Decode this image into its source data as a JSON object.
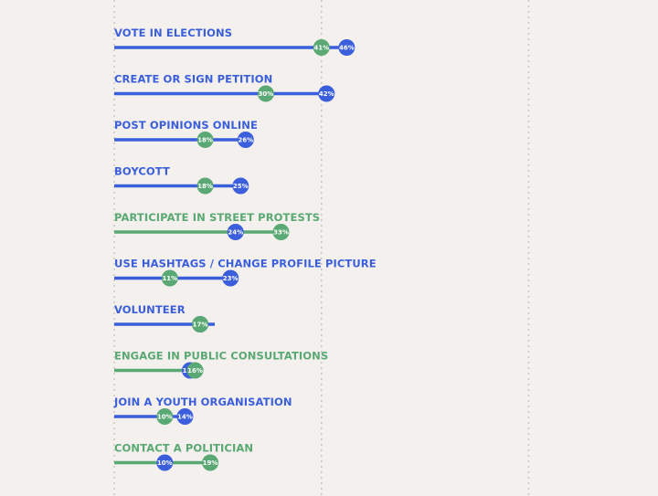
{
  "colors": {
    "background": "#f3f0ed",
    "blue": "#3b5fdc",
    "green": "#5aa873",
    "grid": "#c9c6c2",
    "dot_text": "#ffffff"
  },
  "chart_data": {
    "type": "dumbbell",
    "xlim": [
      0,
      100
    ],
    "grid": "vertical dotted lines at 0, 50, 100",
    "series": [
      {
        "key": "blue",
        "color": "#3b5fdc"
      },
      {
        "key": "green",
        "color": "#5aa873"
      }
    ],
    "rows": [
      {
        "label": "VOTE IN ELECTIONS",
        "label_color": "blue",
        "blue": 46,
        "green": 41,
        "blue_text": "46%",
        "green_text": "41%"
      },
      {
        "label": "CREATE OR SIGN PETITION",
        "label_color": "blue",
        "blue": 42,
        "green": 30,
        "blue_text": "42%",
        "green_text": "30%"
      },
      {
        "label": "POST OPINIONS ONLINE",
        "label_color": "blue",
        "blue": 26,
        "green": 18,
        "blue_text": "26%",
        "green_text": "18%"
      },
      {
        "label": "BOYCOTT",
        "label_color": "blue",
        "blue": 25,
        "green": 18,
        "blue_text": "25%",
        "green_text": "18%"
      },
      {
        "label": "PARTICIPATE IN STREET PROTESTS",
        "label_color": "green",
        "blue": 24,
        "green": 33,
        "blue_text": "24%",
        "green_text": "33%"
      },
      {
        "label": "USE HASHTAGS / CHANGE PROFILE PICTURE",
        "label_color": "blue",
        "blue": 23,
        "green": 11,
        "blue_text": "23%",
        "green_text": "11%"
      },
      {
        "label": "VOLUNTEER",
        "label_color": "blue",
        "blue": 17,
        "green": 17,
        "blue_text": "",
        "green_text": "17%"
      },
      {
        "label": "ENGAGE IN PUBLIC CONSULTATIONS",
        "label_color": "green",
        "blue": 15,
        "green": 16,
        "blue_text": "15%",
        "green_text": "16%"
      },
      {
        "label": "JOIN A YOUTH ORGANISATION",
        "label_color": "blue",
        "blue": 14,
        "green": 10,
        "blue_text": "14%",
        "green_text": "10%"
      },
      {
        "label": "CONTACT A POLITICIAN",
        "label_color": "green",
        "blue": 10,
        "green": 19,
        "blue_text": "10%",
        "green_text": "19%"
      }
    ]
  }
}
